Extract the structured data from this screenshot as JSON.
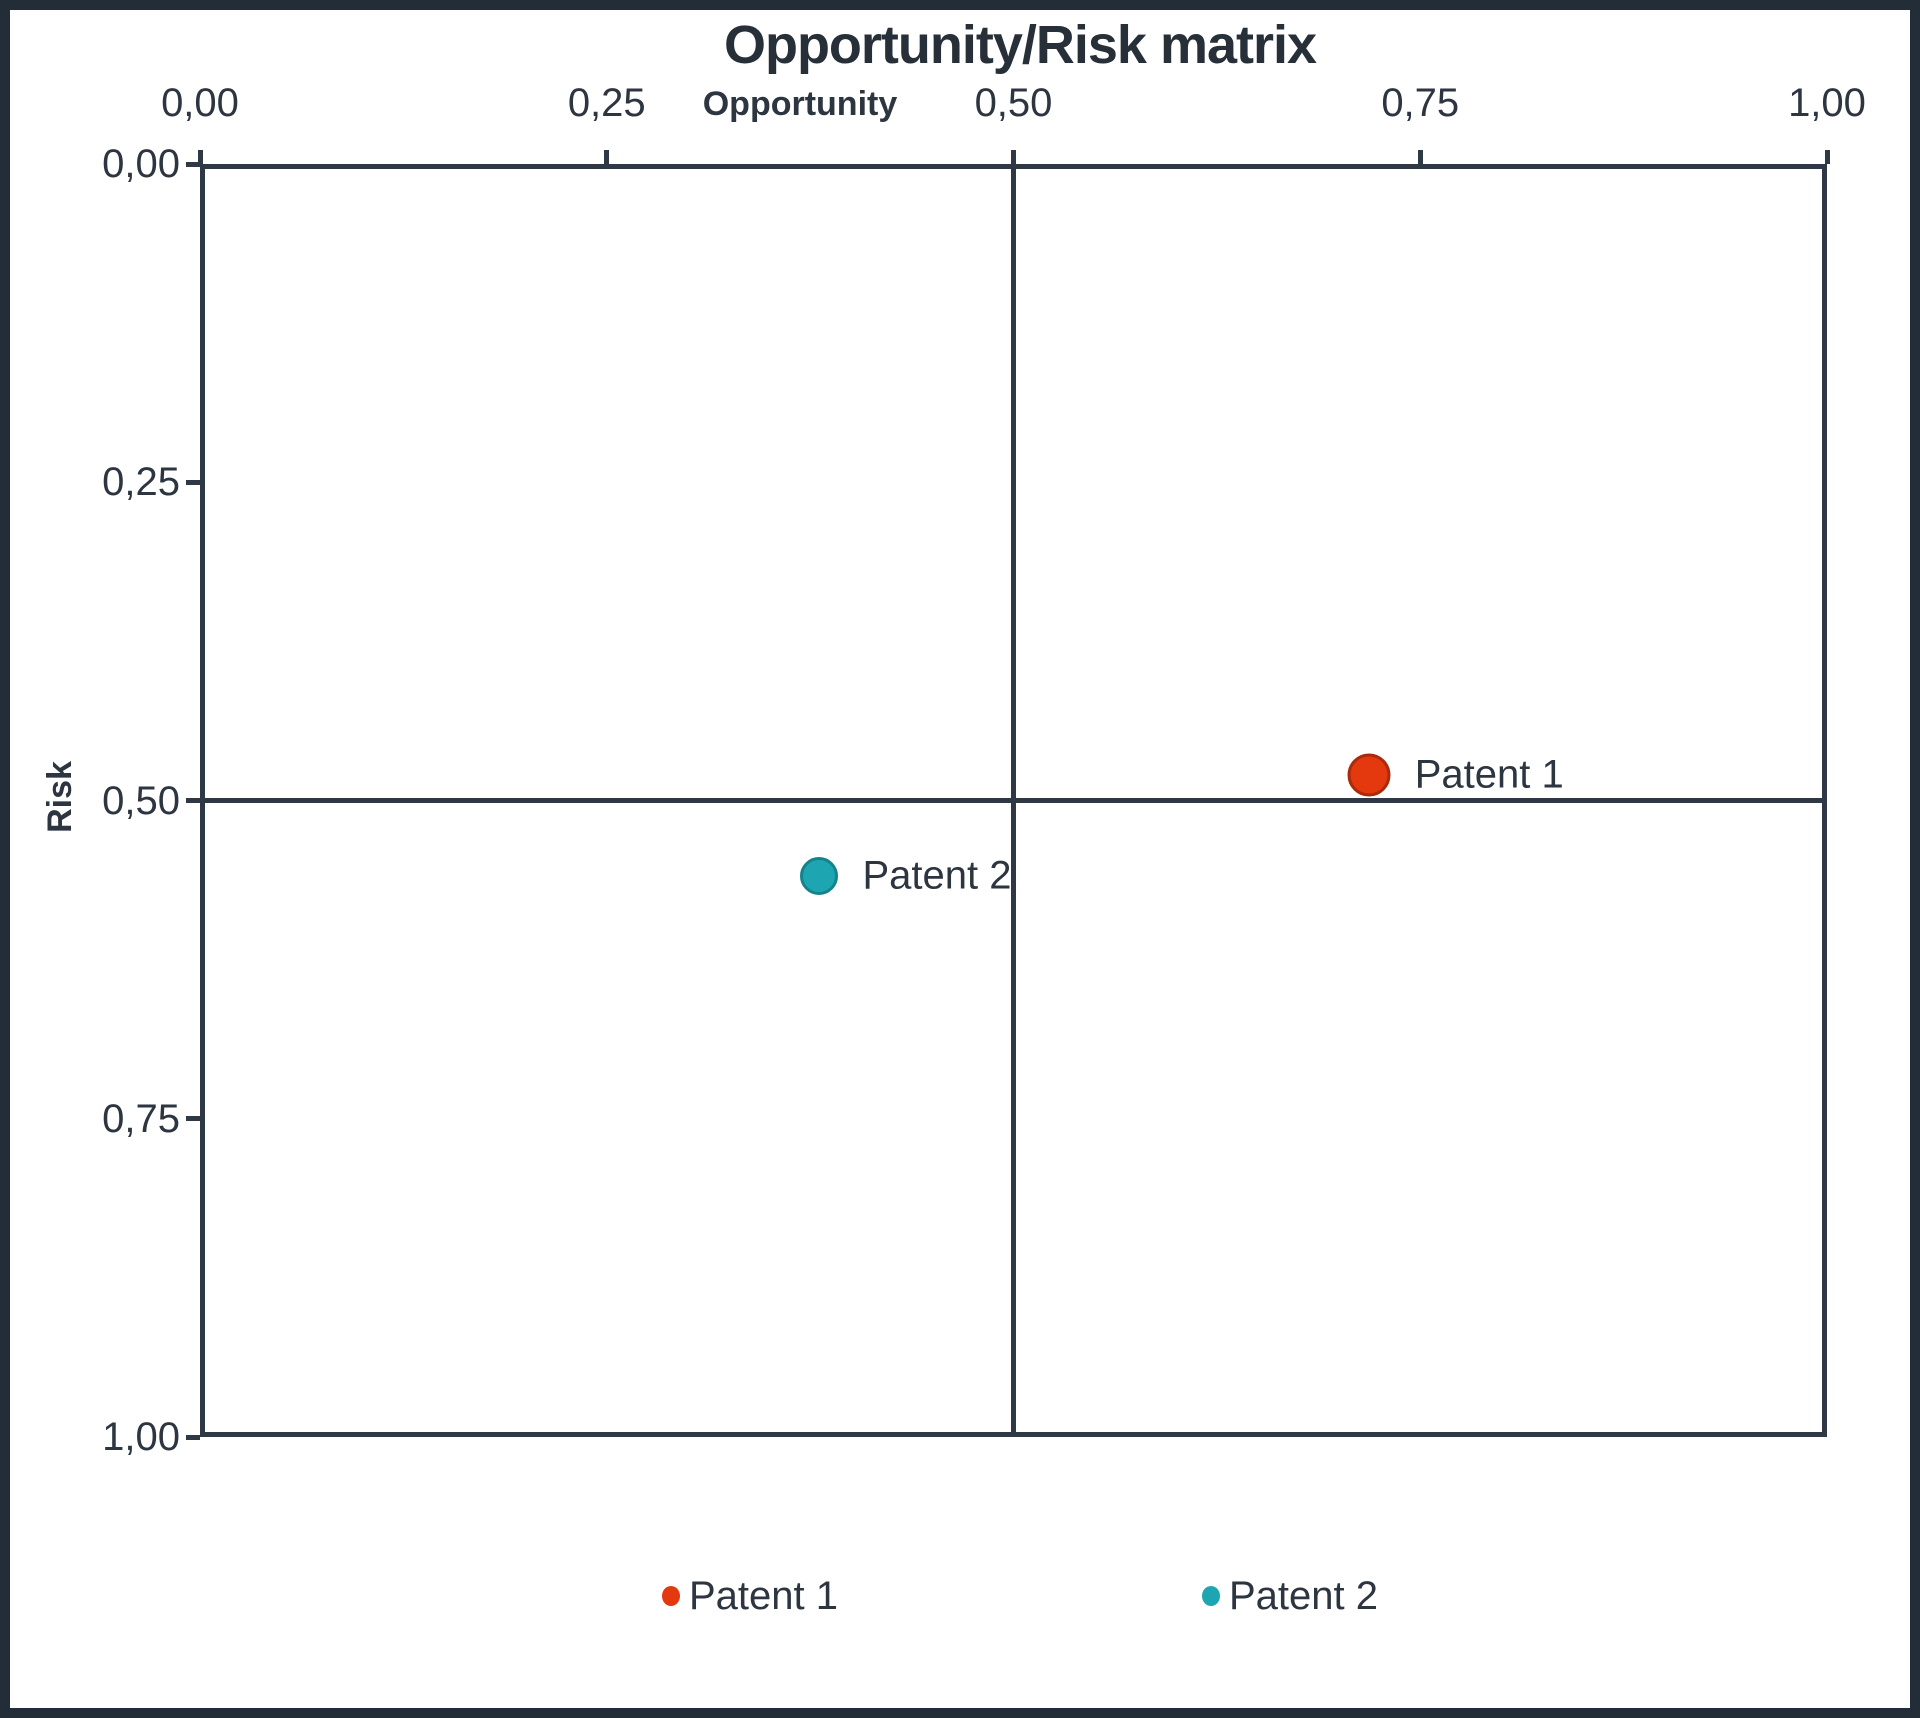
{
  "frame": {
    "border_color": "#232d37",
    "background": "#ffffff"
  },
  "palette": {
    "axis_line_color": "#2e3945",
    "text_color": "#2c3540"
  },
  "chart_data": {
    "type": "scatter",
    "title": "Opportunity/Risk matrix",
    "xlabel": "Opportunity",
    "ylabel": "Risk",
    "x_axis": {
      "min": 0,
      "max": 1,
      "position": "top",
      "tick_labels": [
        "0,00",
        "0,25",
        "0,50",
        "0,75",
        "1,00"
      ],
      "tick_values": [
        0,
        0.25,
        0.5,
        0.75,
        1
      ]
    },
    "y_axis": {
      "min": 0,
      "max": 1,
      "position": "left",
      "direction": "inverted",
      "tick_labels": [
        "0,00",
        "0,25",
        "0,50",
        "0,75",
        "1,00"
      ],
      "tick_values": [
        0,
        0.25,
        0.5,
        0.75,
        1
      ]
    },
    "grid": false,
    "quadrant_lines": {
      "x": 0.5,
      "y": 0.5
    },
    "series": [
      {
        "name": "Patent 1",
        "data_label": "Patent 1",
        "points": [
          {
            "opportunity": 0.72,
            "risk": 0.48
          }
        ],
        "color": "#e4380e",
        "border_color": "#a82b0b",
        "marker_diameter": 43
      },
      {
        "name": "Patent 2",
        "data_label": "Patent 2",
        "points": [
          {
            "opportunity": 0.38,
            "risk": 0.56
          }
        ],
        "color": "#1da6b2",
        "border_color": "#15828c",
        "marker_diameter": 38
      }
    ],
    "legend": {
      "position": "bottom",
      "items": [
        {
          "label": "Patent 1",
          "color": "#e4380e"
        },
        {
          "label": "Patent 2",
          "color": "#1da6b2"
        }
      ]
    }
  }
}
